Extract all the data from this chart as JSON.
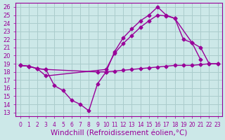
{
  "bg_color": "#cce8e8",
  "line_color": "#990099",
  "grid_color": "#aacccc",
  "xlabel": "Windchill (Refroidissement éolien,°C)",
  "xlabel_fontsize": 7.5,
  "ylabel_values": [
    13,
    14,
    15,
    16,
    17,
    18,
    19,
    20,
    21,
    22,
    23,
    24,
    25,
    26
  ],
  "ylim": [
    12.5,
    26.5
  ],
  "xlim": [
    -0.5,
    23.5
  ],
  "xtick_labels": [
    "0",
    "1",
    "2",
    "3",
    "4",
    "5",
    "6",
    "7",
    "8",
    "9",
    "10",
    "11",
    "12",
    "13",
    "14",
    "15",
    "16",
    "17",
    "18",
    "19",
    "20",
    "21",
    "22",
    "23"
  ],
  "series": [
    {
      "x": [
        0,
        1,
        2,
        3,
        4,
        5,
        6,
        7,
        8,
        9,
        10,
        11,
        12,
        13,
        14,
        15,
        16,
        17,
        18,
        19,
        20,
        21
      ],
      "y": [
        18.8,
        18.7,
        18.4,
        18.3,
        16.3,
        15.7,
        14.5,
        14.0,
        13.2,
        16.5,
        18.0,
        20.5,
        22.2,
        23.3,
        24.3,
        25.0,
        26.0,
        25.0,
        24.6,
        22.0,
        21.6,
        19.5
      ]
    },
    {
      "x": [
        0,
        1,
        2,
        3,
        10,
        11,
        12,
        13,
        14,
        15,
        16,
        17,
        18,
        20,
        21,
        22,
        23
      ],
      "y": [
        18.8,
        18.7,
        18.4,
        17.5,
        18.3,
        20.3,
        21.5,
        22.5,
        23.5,
        24.3,
        25.0,
        24.9,
        24.6,
        21.6,
        21.0,
        19.0,
        19.0
      ]
    },
    {
      "x": [
        0,
        1,
        2,
        3,
        9,
        10,
        11,
        12,
        13,
        14,
        15,
        16,
        17,
        18,
        19,
        20,
        21,
        22,
        23
      ],
      "y": [
        18.8,
        18.7,
        18.4,
        18.3,
        18.0,
        18.0,
        18.1,
        18.2,
        18.3,
        18.4,
        18.5,
        18.6,
        18.7,
        18.8,
        18.8,
        18.8,
        18.9,
        19.0,
        19.0
      ]
    }
  ],
  "marker": "D",
  "markersize": 2.5,
  "linewidth": 1.0
}
